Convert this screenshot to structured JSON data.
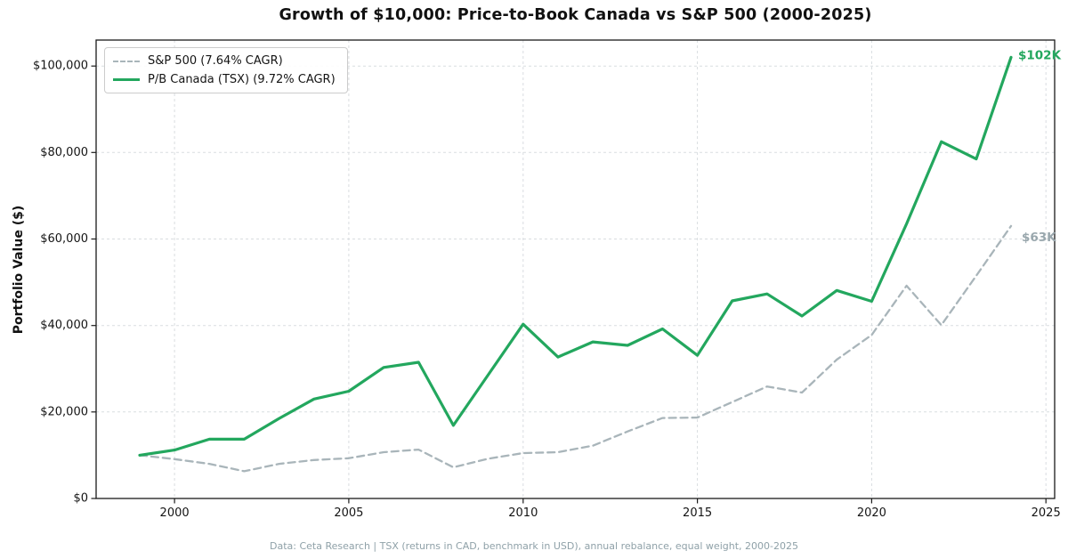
{
  "title": "Growth of $10,000: Price-to-Book Canada vs S&P 500 (2000-2025)",
  "footer": "Data: Ceta Research | TSX (returns in CAD, benchmark in USD), annual rebalance, equal weight, 2000-2025",
  "colors": {
    "pb_canada": "#23a75e",
    "sp500": "#a9b5ba",
    "sp500_label": "#99a7ad",
    "grid": "#d9dde0",
    "spine": "#1a1a1a",
    "tick_text": "#141414"
  },
  "legend": {
    "items": [
      {
        "label": "S&P 500 (7.64% CAGR)",
        "style": "dashed"
      },
      {
        "label": "P/B Canada (TSX) (9.72% CAGR)",
        "style": "solid"
      }
    ]
  },
  "annotations": [
    {
      "text": "$102K",
      "series": 1,
      "color": "#23a75e"
    },
    {
      "text": "$63K",
      "series": 0,
      "color": "#99a7ad"
    }
  ],
  "chart_data": {
    "type": "line",
    "title": "Growth of $10,000: Price-to-Book Canada vs S&P 500 (2000-2025)",
    "xlabel": "",
    "ylabel": "Portfolio Value ($)",
    "x": [
      1999,
      2000,
      2001,
      2002,
      2003,
      2004,
      2005,
      2006,
      2007,
      2008,
      2009,
      2010,
      2011,
      2012,
      2013,
      2014,
      2015,
      2016,
      2017,
      2018,
      2019,
      2020,
      2021,
      2022,
      2023,
      2024
    ],
    "series": [
      {
        "name": "S&P 500 (7.64% CAGR)",
        "style": "dashed",
        "color": "#a9b5ba",
        "values": [
          10000,
          9100,
          8000,
          6300,
          8000,
          8900,
          9300,
          10700,
          11300,
          7200,
          9200,
          10500,
          10700,
          12200,
          15500,
          18600,
          18700,
          22300,
          25900,
          24500,
          32100,
          37800,
          49200,
          40100,
          51500,
          63000
        ]
      },
      {
        "name": "P/B Canada (TSX) (9.72% CAGR)",
        "style": "solid",
        "color": "#23a75e",
        "values": [
          10000,
          11200,
          13700,
          13700,
          18500,
          23000,
          24800,
          30300,
          31500,
          16900,
          28600,
          40300,
          32700,
          36200,
          35400,
          39200,
          33100,
          45700,
          47300,
          42200,
          48100,
          45600,
          63500,
          82500,
          78500,
          102000
        ]
      }
    ],
    "x_ticks": [
      2000,
      2005,
      2010,
      2015,
      2020,
      2025
    ],
    "x_tick_labels": [
      "2000",
      "2005",
      "2010",
      "2015",
      "2020",
      "2025"
    ],
    "y_ticks": [
      0,
      20000,
      40000,
      60000,
      80000,
      100000
    ],
    "y_tick_labels": [
      "$0",
      "$20,000",
      "$40,000",
      "$60,000",
      "$80,000",
      "$100,000"
    ],
    "xlim": [
      1997.75,
      2025.25
    ],
    "ylim": [
      0,
      106000
    ],
    "grid": true,
    "legend_position": "upper left",
    "end_labels": [
      "$63K",
      "$102K"
    ]
  }
}
